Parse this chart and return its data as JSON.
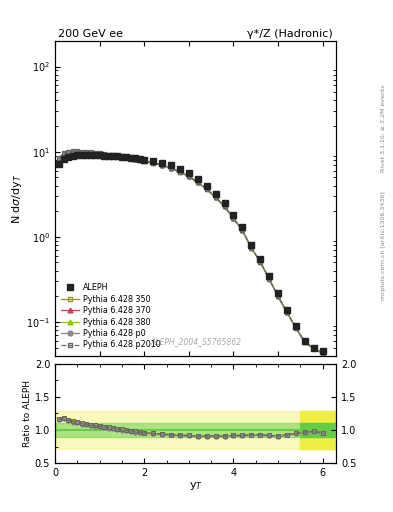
{
  "title_left": "200 GeV ee",
  "title_right": "γ*/Z (Hadronic)",
  "ylabel_main": "N dσ/dy_T",
  "ylabel_ratio": "Ratio to ALEPH",
  "xlabel": "y_T",
  "right_label_top": "Rivet 3.1.10, ≥ 3.2M events",
  "right_label_bottom": "mcplots.cern.ch [arXiv:1306.3436]",
  "watermark": "ALEPH_2004_S5765862",
  "x_data": [
    0.1,
    0.2,
    0.3,
    0.4,
    0.5,
    0.6,
    0.7,
    0.8,
    0.9,
    1.0,
    1.1,
    1.2,
    1.3,
    1.4,
    1.5,
    1.6,
    1.7,
    1.8,
    1.9,
    2.0,
    2.2,
    2.4,
    2.6,
    2.8,
    3.0,
    3.2,
    3.4,
    3.6,
    3.8,
    4.0,
    4.2,
    4.4,
    4.6,
    4.8,
    5.0,
    5.2,
    5.4,
    5.6,
    5.8,
    6.0
  ],
  "y_aleph": [
    7.2,
    8.2,
    8.7,
    9.0,
    9.1,
    9.1,
    9.1,
    9.1,
    9.1,
    9.1,
    9.0,
    8.9,
    8.9,
    8.8,
    8.7,
    8.6,
    8.5,
    8.4,
    8.3,
    8.1,
    7.8,
    7.4,
    6.9,
    6.3,
    5.6,
    4.8,
    4.0,
    3.2,
    2.5,
    1.8,
    1.3,
    0.8,
    0.55,
    0.35,
    0.22,
    0.14,
    0.09,
    0.06,
    0.05,
    0.045
  ],
  "ratio_p350": [
    1.17,
    1.18,
    1.15,
    1.13,
    1.12,
    1.1,
    1.09,
    1.08,
    1.07,
    1.06,
    1.05,
    1.04,
    1.03,
    1.02,
    1.01,
    1.0,
    0.99,
    0.98,
    0.97,
    0.96,
    0.95,
    0.94,
    0.93,
    0.92,
    0.92,
    0.91,
    0.91,
    0.91,
    0.91,
    0.92,
    0.92,
    0.93,
    0.93,
    0.92,
    0.91,
    0.93,
    0.95,
    0.97,
    0.98,
    0.96
  ],
  "ratio_p370": [
    1.17,
    1.18,
    1.15,
    1.13,
    1.12,
    1.1,
    1.09,
    1.08,
    1.07,
    1.06,
    1.05,
    1.04,
    1.03,
    1.02,
    1.01,
    1.0,
    0.99,
    0.98,
    0.97,
    0.96,
    0.95,
    0.94,
    0.93,
    0.92,
    0.92,
    0.91,
    0.91,
    0.91,
    0.91,
    0.92,
    0.92,
    0.93,
    0.93,
    0.92,
    0.91,
    0.93,
    0.95,
    0.97,
    0.98,
    0.96
  ],
  "ratio_p380": [
    1.17,
    1.18,
    1.15,
    1.13,
    1.12,
    1.1,
    1.09,
    1.08,
    1.07,
    1.06,
    1.05,
    1.04,
    1.03,
    1.02,
    1.01,
    1.0,
    0.99,
    0.98,
    0.97,
    0.96,
    0.95,
    0.94,
    0.93,
    0.92,
    0.92,
    0.91,
    0.91,
    0.91,
    0.91,
    0.92,
    0.92,
    0.93,
    0.93,
    0.92,
    0.91,
    0.93,
    0.95,
    0.97,
    0.98,
    0.96
  ],
  "ratio_p0": [
    1.15,
    1.16,
    1.13,
    1.11,
    1.1,
    1.08,
    1.07,
    1.06,
    1.05,
    1.04,
    1.03,
    1.02,
    1.01,
    1.0,
    0.99,
    0.98,
    0.97,
    0.96,
    0.96,
    0.95,
    0.94,
    0.93,
    0.92,
    0.91,
    0.91,
    0.9,
    0.9,
    0.9,
    0.9,
    0.91,
    0.91,
    0.92,
    0.92,
    0.91,
    0.9,
    0.92,
    0.94,
    0.96,
    0.97,
    0.95
  ],
  "ratio_p2010": [
    1.17,
    1.18,
    1.15,
    1.13,
    1.12,
    1.1,
    1.09,
    1.08,
    1.07,
    1.06,
    1.05,
    1.04,
    1.03,
    1.02,
    1.01,
    1.0,
    0.99,
    0.98,
    0.97,
    0.96,
    0.95,
    0.94,
    0.93,
    0.92,
    0.92,
    0.91,
    0.91,
    0.91,
    0.91,
    0.92,
    0.92,
    0.93,
    0.93,
    0.92,
    0.91,
    0.93,
    0.95,
    0.97,
    0.98,
    0.96
  ],
  "ylim_main": [
    0.04,
    200
  ],
  "ylim_ratio": [
    0.5,
    2.0
  ],
  "xlim": [
    0.0,
    6.3
  ],
  "band_yellow_lo": 0.72,
  "band_yellow_hi": 1.28,
  "band_green_lo": 0.9,
  "band_green_hi": 1.1,
  "band_xstart": 5.5,
  "band_xend": 6.35,
  "colors": {
    "aleph": "#222222",
    "p350": "#999900",
    "p370": "#cc4444",
    "p380": "#88cc00",
    "p0": "#888888",
    "p2010": "#666666",
    "band_yellow": "#eeee44",
    "band_green": "#66cc44"
  }
}
